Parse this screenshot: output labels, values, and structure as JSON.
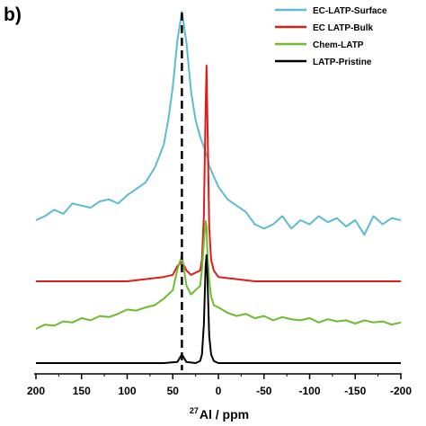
{
  "panel_label": "b)",
  "colors": {
    "ec_surface": "#5bbcd1",
    "ec_bulk": "#e01b1b",
    "chem": "#6cbc2c",
    "pristine": "#000000"
  },
  "chart_data": {
    "type": "line",
    "title": "",
    "xlabel_sup": "27",
    "xlabel_main": "Al / ppm",
    "xlim": [
      200,
      -200
    ],
    "x_reversed": true,
    "x_ticks": [
      200,
      150,
      100,
      50,
      0,
      -50,
      -100,
      -150,
      -200
    ],
    "x_tick_labels": [
      "200",
      "150",
      "100",
      "50",
      "0",
      "-50",
      "-100",
      "-150",
      "-200"
    ],
    "y_axis_shown": false,
    "grid": false,
    "legend_position": "top-right",
    "reference_line": {
      "x": 40,
      "style": "dashed",
      "color": "#000000"
    },
    "series": [
      {
        "name": "EC-LATP-Surface",
        "color": "#5bbcd1",
        "x": [
          200,
          190,
          180,
          170,
          160,
          150,
          140,
          130,
          120,
          110,
          100,
          90,
          80,
          70,
          60,
          55,
          50,
          45,
          40,
          35,
          30,
          25,
          20,
          15,
          12,
          10,
          5,
          0,
          -10,
          -20,
          -30,
          -40,
          -50,
          -60,
          -70,
          -80,
          -90,
          -100,
          -110,
          -120,
          -130,
          -140,
          -150,
          -160,
          -170,
          -180,
          -190,
          -200
        ],
        "y": [
          0.0,
          0.02,
          0.05,
          0.03,
          0.08,
          0.07,
          0.06,
          0.09,
          0.1,
          0.08,
          0.12,
          0.15,
          0.18,
          0.25,
          0.36,
          0.48,
          0.64,
          0.86,
          1.0,
          0.85,
          0.62,
          0.48,
          0.4,
          0.34,
          0.3,
          0.26,
          0.21,
          0.16,
          0.1,
          0.07,
          0.04,
          -0.02,
          -0.04,
          -0.02,
          0.02,
          -0.04,
          0.0,
          -0.02,
          0.02,
          -0.01,
          0.01,
          -0.03,
          0.0,
          -0.07,
          0.02,
          -0.02,
          0.01,
          0.0
        ]
      },
      {
        "name": "EC LATP-Bulk",
        "color": "#e01b1b",
        "x": [
          200,
          180,
          160,
          140,
          120,
          100,
          80,
          60,
          50,
          45,
          40,
          35,
          30,
          20,
          18,
          16,
          14,
          13,
          12,
          10,
          8,
          5,
          0,
          -20,
          -40,
          -60,
          -80,
          -100,
          -120,
          -140,
          -160,
          -180,
          -200
        ],
        "y": [
          0.0,
          0.0,
          0.0,
          0.0,
          0.0,
          0.0,
          0.01,
          0.02,
          0.03,
          0.07,
          0.09,
          0.05,
          0.03,
          0.05,
          0.1,
          0.3,
          0.8,
          1.0,
          0.75,
          0.25,
          0.1,
          0.05,
          0.02,
          0.01,
          0.0,
          0.0,
          0.0,
          0.0,
          0.0,
          0.0,
          0.0,
          0.0,
          0.0
        ]
      },
      {
        "name": "Chem-LATP",
        "color": "#6cbc2c",
        "x": [
          200,
          190,
          180,
          170,
          160,
          150,
          140,
          130,
          120,
          110,
          100,
          90,
          80,
          70,
          60,
          50,
          45,
          40,
          35,
          30,
          25,
          20,
          18,
          16,
          14,
          13,
          12,
          10,
          8,
          5,
          0,
          -10,
          -20,
          -30,
          -40,
          -50,
          -60,
          -70,
          -80,
          -90,
          -100,
          -110,
          -120,
          -130,
          -140,
          -150,
          -160,
          -170,
          -180,
          -190,
          -200
        ],
        "y": [
          0.0,
          0.04,
          0.03,
          0.07,
          0.06,
          0.1,
          0.08,
          0.12,
          0.11,
          0.14,
          0.18,
          0.17,
          0.2,
          0.22,
          0.28,
          0.36,
          0.55,
          0.68,
          0.4,
          0.32,
          0.36,
          0.4,
          0.55,
          0.8,
          1.0,
          0.95,
          0.7,
          0.45,
          0.3,
          0.22,
          0.2,
          0.15,
          0.12,
          0.14,
          0.1,
          0.12,
          0.08,
          0.11,
          0.09,
          0.08,
          0.1,
          0.06,
          0.09,
          0.07,
          0.08,
          0.05,
          0.08,
          0.06,
          0.07,
          0.04,
          0.06
        ]
      },
      {
        "name": "LATP-Pristine",
        "color": "#000000",
        "x": [
          200,
          150,
          100,
          60,
          45,
          40,
          35,
          25,
          20,
          18,
          16,
          14,
          13,
          12,
          10,
          8,
          5,
          0,
          -50,
          -100,
          -150,
          -200
        ],
        "y": [
          0.0,
          0.0,
          0.0,
          0.0,
          0.01,
          0.08,
          0.01,
          0.0,
          0.02,
          0.08,
          0.35,
          0.9,
          1.0,
          0.8,
          0.25,
          0.08,
          0.02,
          0.0,
          0.0,
          0.0,
          0.0,
          0.0
        ]
      }
    ]
  }
}
